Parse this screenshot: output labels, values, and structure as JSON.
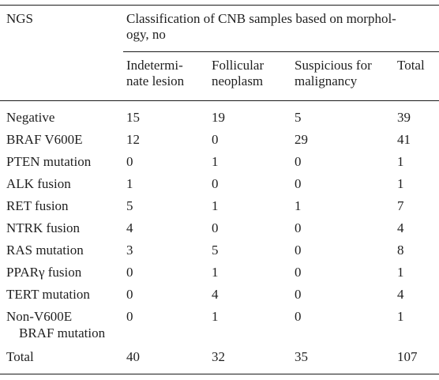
{
  "table": {
    "header": {
      "first_col": "NGS",
      "group_line1": "Classification of CNB samples based on morphol-",
      "group_line2": "ogy, no",
      "sub": [
        {
          "line1": "Indetermi-",
          "line2": "nate lesion"
        },
        {
          "line1": "Follicular",
          "line2": "neoplasm"
        },
        {
          "line1": "Suspicious for",
          "line2": "malignancy"
        },
        {
          "line1": "Total",
          "line2": ""
        }
      ]
    },
    "rows": [
      {
        "label": "Negative",
        "label2": "",
        "v1": "15",
        "v2": "19",
        "v3": "5",
        "v4": "39"
      },
      {
        "label": "BRAF V600E",
        "label2": "",
        "v1": "12",
        "v2": "0",
        "v3": "29",
        "v4": "41"
      },
      {
        "label": "PTEN mutation",
        "label2": "",
        "v1": "0",
        "v2": "1",
        "v3": "0",
        "v4": "1"
      },
      {
        "label": "ALK fusion",
        "label2": "",
        "v1": "1",
        "v2": "0",
        "v3": "0",
        "v4": "1"
      },
      {
        "label": "RET fusion",
        "label2": "",
        "v1": "5",
        "v2": "1",
        "v3": "1",
        "v4": "7"
      },
      {
        "label": "NTRK fusion",
        "label2": "",
        "v1": "4",
        "v2": "0",
        "v3": "0",
        "v4": "4"
      },
      {
        "label": "RAS mutation",
        "label2": "",
        "v1": "3",
        "v2": "5",
        "v3": "0",
        "v4": "8"
      },
      {
        "label": "PPARγ fusion",
        "label2": "",
        "v1": "0",
        "v2": "1",
        "v3": "0",
        "v4": "1"
      },
      {
        "label": "TERT mutation",
        "label2": "",
        "v1": "0",
        "v2": "4",
        "v3": "0",
        "v4": "4"
      },
      {
        "label": "Non-V600E",
        "label2": "BRAF mutation",
        "v1": "0",
        "v2": "1",
        "v3": "0",
        "v4": "1"
      },
      {
        "label": "Total",
        "label2": "",
        "v1": "40",
        "v2": "32",
        "v3": "35",
        "v4": "107"
      }
    ]
  }
}
